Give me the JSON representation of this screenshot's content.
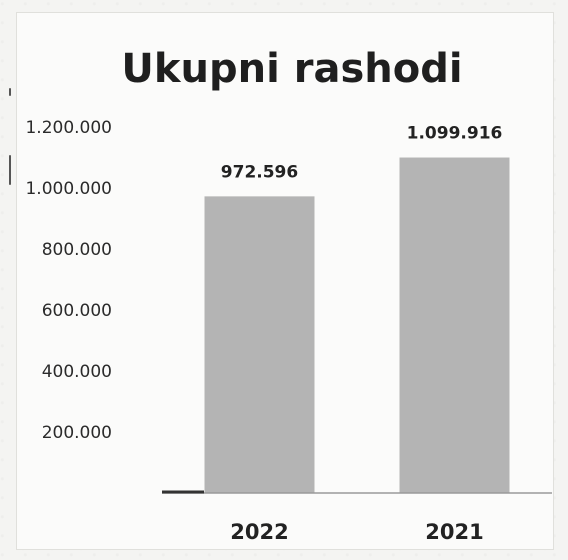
{
  "chart_data": {
    "type": "bar",
    "title": "Ukupni rashodi",
    "xlabel": "",
    "ylabel": "",
    "categories": [
      "2022",
      "2021"
    ],
    "values": [
      972596,
      1099916
    ],
    "data_labels": [
      "972.596",
      "1.099.916"
    ],
    "yticks": [
      0,
      200000,
      400000,
      600000,
      800000,
      1000000,
      1200000
    ],
    "ytick_labels": [
      "",
      "200.000",
      "400.000",
      "600.000",
      "800.000",
      "1.000.000",
      "1.200.000"
    ],
    "ylim": [
      0,
      1200000
    ],
    "grid": false,
    "legend": "none",
    "bar_color": "#b4b4b4",
    "axis_color": "#9a9a9a"
  }
}
